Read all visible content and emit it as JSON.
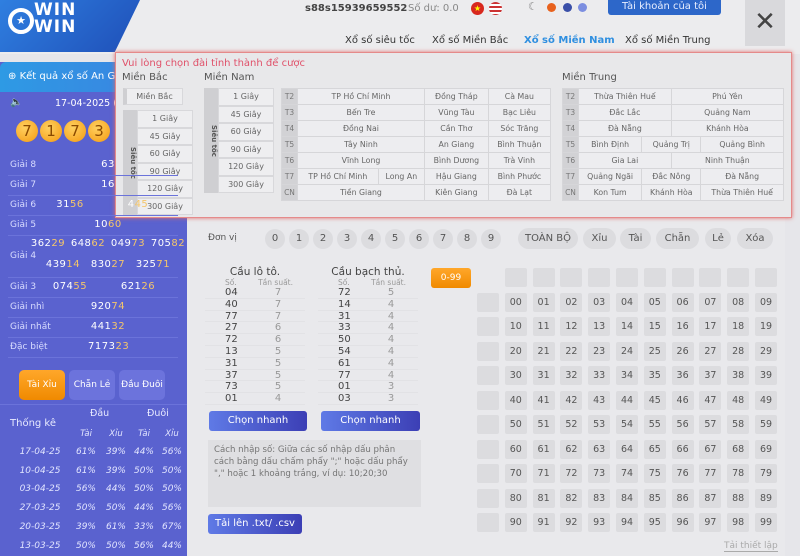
{
  "header": {
    "logo_text": "WIN WIN",
    "username": "s88s15939659552",
    "balance": "Số dư: 0.0",
    "account_button": "Tài khoản của tôi",
    "close": "✕",
    "theme_colors": [
      "#888888",
      "#e8621e",
      "#3a4fa8",
      "#7c8ee0"
    ],
    "nav": [
      "Xổ số siêu tốc",
      "Xổ số Miền Bắc",
      "Xổ số Miền Nam",
      "Xổ số Miền Trung"
    ],
    "nav_active": 2
  },
  "sidebar": {
    "banner": "Kết quả xổ số An G",
    "date": "17-04-2025 (T5)",
    "balls": [
      "7",
      "1",
      "7",
      "3"
    ],
    "prizes": [
      {
        "label": "Giải 8",
        "values": [
          "63"
        ]
      },
      {
        "label": "Giải 7",
        "values": [
          "16"
        ]
      },
      {
        "label": "Giải 6",
        "values": [
          "3156",
          "445"
        ]
      },
      {
        "label": "Giải 5",
        "values": [
          "1060"
        ]
      },
      {
        "label": "Giải 4",
        "values": [
          "36229",
          "64862",
          "04973",
          "70582",
          "43914",
          "83027",
          "32571"
        ]
      },
      {
        "label": "Giải 3",
        "values": [
          "07455",
          "62126"
        ]
      },
      {
        "label": "Giải nhì",
        "values": [
          "92074"
        ]
      },
      {
        "label": "Giải nhất",
        "values": [
          "44132"
        ]
      },
      {
        "label": "Đặc biệt",
        "values": [
          "717323"
        ]
      }
    ],
    "tabs": [
      "Tài Xỉu",
      "Chẵn Lẻ",
      "Đầu Đuôi"
    ],
    "active_tab": 0,
    "stats": {
      "title": "Thống kê",
      "head": "Đầu",
      "tail": "Đuôi",
      "tai": "Tài",
      "xiu": "Xỉu",
      "rows": [
        [
          "17-04-25",
          "61%",
          "39%",
          "44%",
          "56%"
        ],
        [
          "10-04-25",
          "61%",
          "39%",
          "50%",
          "50%"
        ],
        [
          "03-04-25",
          "56%",
          "44%",
          "50%",
          "50%"
        ],
        [
          "27-03-25",
          "50%",
          "50%",
          "44%",
          "56%"
        ],
        [
          "20-03-25",
          "39%",
          "61%",
          "33%",
          "67%"
        ],
        [
          "13-03-25",
          "50%",
          "50%",
          "56%",
          "44%"
        ]
      ]
    }
  },
  "popup": {
    "title": "Vui lòng chọn đài tỉnh thành để cược",
    "mien_bac": "Miền Bắc",
    "mien_nam": "Miền Nam",
    "mien_trung": "Miền Trung",
    "bac_main": "Miền Bắc",
    "sieu_toc": "Siêu tốc",
    "speeds": [
      "1 Giây",
      "45 Giây",
      "60 Giây",
      "90 Giây",
      "120 Giây",
      "300 Giây"
    ],
    "nam": [
      [
        "T2",
        [
          "TP Hồ Chí Minh",
          "Đồng Tháp",
          "Cà Mau"
        ]
      ],
      [
        "T3",
        [
          "Bến Tre",
          "Vũng Tàu",
          "Bạc Liêu"
        ]
      ],
      [
        "T4",
        [
          "Đồng Nai",
          "Cần Thơ",
          "Sóc Trăng"
        ]
      ],
      [
        "T5",
        [
          "Tây Ninh",
          "An Giang",
          "Bình Thuận"
        ]
      ],
      [
        "T6",
        [
          "Vĩnh Long",
          "Bình Dương",
          "Trà Vinh"
        ]
      ],
      [
        "T7",
        [
          "TP Hồ Chí Minh",
          "Long An",
          "Hậu Giang",
          "Bình Phước"
        ]
      ],
      [
        "CN",
        [
          "Tiền Giang",
          "Kiên Giang",
          "Đà Lạt"
        ]
      ]
    ],
    "trung": [
      [
        "T2",
        [
          "Thừa Thiên Huế",
          "Phú Yên"
        ]
      ],
      [
        "T3",
        [
          "Đắc Lắc",
          "Quảng Nam"
        ]
      ],
      [
        "T4",
        [
          "Đà Nẵng",
          "Khánh Hòa"
        ]
      ],
      [
        "T5",
        [
          "Bình Định",
          "Quảng Trị",
          "Quảng Bình"
        ]
      ],
      [
        "T6",
        [
          "Gia Lai",
          "Ninh Thuận"
        ]
      ],
      [
        "T7",
        [
          "Quảng Ngãi",
          "Đắc Nông",
          "Đà Nẵng"
        ]
      ],
      [
        "CN",
        [
          "Kon Tum",
          "Khánh Hòa",
          "Thừa Thiên Huế"
        ]
      ]
    ]
  },
  "main": {
    "unit_label": "Đơn vị",
    "digits": [
      "0",
      "1",
      "2",
      "3",
      "4",
      "5",
      "6",
      "7",
      "8",
      "9"
    ],
    "filters": [
      "TOÀN BỘ",
      "Xỉu",
      "Tài",
      "Chẵn",
      "Lẻ",
      "Xóa"
    ],
    "range_button": "0-99",
    "lo_to": {
      "title": "Cầu lô tô.",
      "col1": "Số.",
      "col2": "Tần suất.",
      "rows": [
        [
          "04",
          "7"
        ],
        [
          "40",
          "7"
        ],
        [
          "77",
          "7"
        ],
        [
          "27",
          "6"
        ],
        [
          "72",
          "6"
        ],
        [
          "13",
          "5"
        ],
        [
          "31",
          "5"
        ],
        [
          "37",
          "5"
        ],
        [
          "73",
          "5"
        ],
        [
          "01",
          "4"
        ]
      ]
    },
    "bach_thu": {
      "title": "Cầu bạch thủ.",
      "col1": "Số.",
      "col2": "Tần suất.",
      "rows": [
        [
          "72",
          "5"
        ],
        [
          "14",
          "4"
        ],
        [
          "31",
          "4"
        ],
        [
          "33",
          "4"
        ],
        [
          "50",
          "4"
        ],
        [
          "54",
          "4"
        ],
        [
          "61",
          "4"
        ],
        [
          "77",
          "4"
        ],
        [
          "01",
          "3"
        ],
        [
          "03",
          "3"
        ]
      ]
    },
    "quick_pick": "Chọn nhanh",
    "input_placeholder": "Cách nhập số: Giữa các số nhập dấu phân cách bằng dấu chấm phẩy \";\" hoặc dấu phẩy \",\" hoặc 1 khoảng trắng, ví dụ: 10;20;30",
    "upload": "Tải lên .txt/ .csv",
    "reset": "Tải thiết lập"
  },
  "colors": {
    "accent": "#2d67c9",
    "sidebar": "#5a62cf",
    "orange": "#f49a10",
    "active_nav": "#2f8fe0",
    "alert": "#e0516a"
  }
}
